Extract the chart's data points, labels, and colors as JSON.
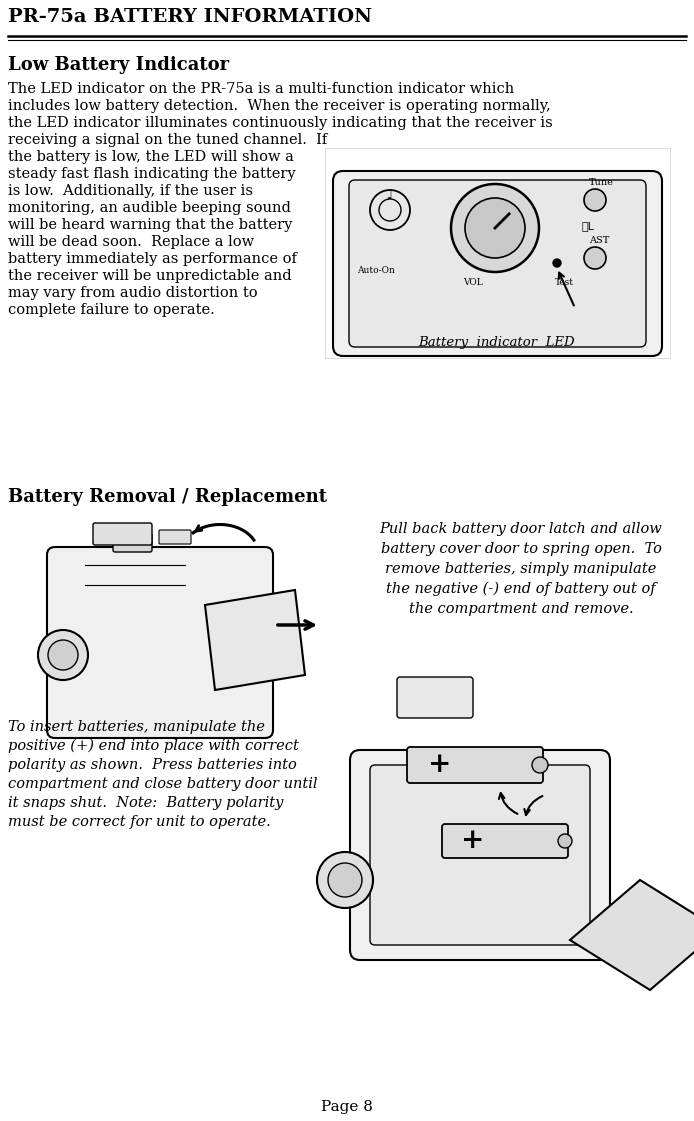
{
  "title": "PR-75a BATTERY INFORMATION",
  "page": "Page 8",
  "bg_color": "#ffffff",
  "text_color": "#000000",
  "title_fontsize": 14,
  "heading1": "Low Battery Indicator",
  "heading1_fontsize": 13,
  "heading2": "Battery Removal / Replacement",
  "heading2_fontsize": 13,
  "body_fontsize": 10.5,
  "italic_fontsize": 10.5,
  "caption_fontsize": 9.5,
  "body_text1_full": "The LED indicator on the PR-75a is a multi-function indicator which\nincludes low battery detection.  When the receiver is operating normally,\nthe LED indicator illuminates continuously indicating that the receiver is",
  "body_text1_left": "receiving a signal on the tuned channel.  If\nthe battery is low, the LED will show a\nsteady fast flash indicating the battery\nis low.  Additionally, if the user is\nmonitoring, an audible beeping sound\nwill be heard warning that the battery\nwill be dead soon.  Replace a low\nbattery immediately as performance of\nthe receiver will be unpredictable and\nmay vary from audio distortion to\ncomplete failure to operate.",
  "caption1": "Battery  indicator  LED",
  "removal_text_right": "Pull back battery door latch and allow\n  battery cover door to spring open.  To\n    remove batteries, simply manipulate\n  the negative (-) end of battery out of\n      the compartment and remove.",
  "insert_text_left": "To insert batteries, manipulate the\npositive (+) end into place with correct\npolarity as shown.  Press batteries into\ncompartment and close battery door until\nit snaps shut.  Note:  Battery polarity\nmust be correct for unit to operate."
}
